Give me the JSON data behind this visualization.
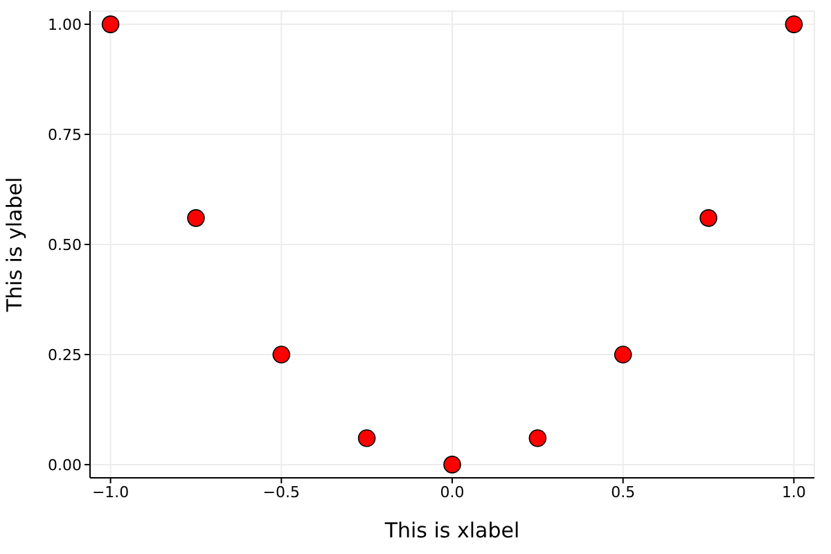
{
  "chart_data": {
    "type": "scatter",
    "xlabel": "This is xlabel",
    "ylabel": "This is ylabel",
    "x": [
      -1,
      -0.75,
      -0.5,
      -0.25,
      0,
      0.25,
      0.5,
      0.75,
      1
    ],
    "series": [
      {
        "color": "#ff0000",
        "values": [
          1,
          0.56,
          0.25,
          0.06,
          0,
          0.06,
          0.25,
          0.56,
          1
        ]
      }
    ],
    "xlim": [
      -1.06,
      1.06
    ],
    "ylim": [
      -0.03,
      1.03
    ],
    "xticks": [
      {
        "value": -1,
        "label": "−1.0"
      },
      {
        "value": -0.5,
        "label": "−0.5"
      },
      {
        "value": 0,
        "label": "0.0"
      },
      {
        "value": 0.5,
        "label": "0.5"
      },
      {
        "value": 1,
        "label": "1.0"
      }
    ],
    "yticks": [
      {
        "value": 0,
        "label": "0.00"
      },
      {
        "value": 0.25,
        "label": "0.25"
      },
      {
        "value": 0.5,
        "label": "0.50"
      },
      {
        "value": 0.75,
        "label": "0.75"
      },
      {
        "value": 1,
        "label": "1.00"
      }
    ],
    "grid": true,
    "marker": "circle"
  }
}
